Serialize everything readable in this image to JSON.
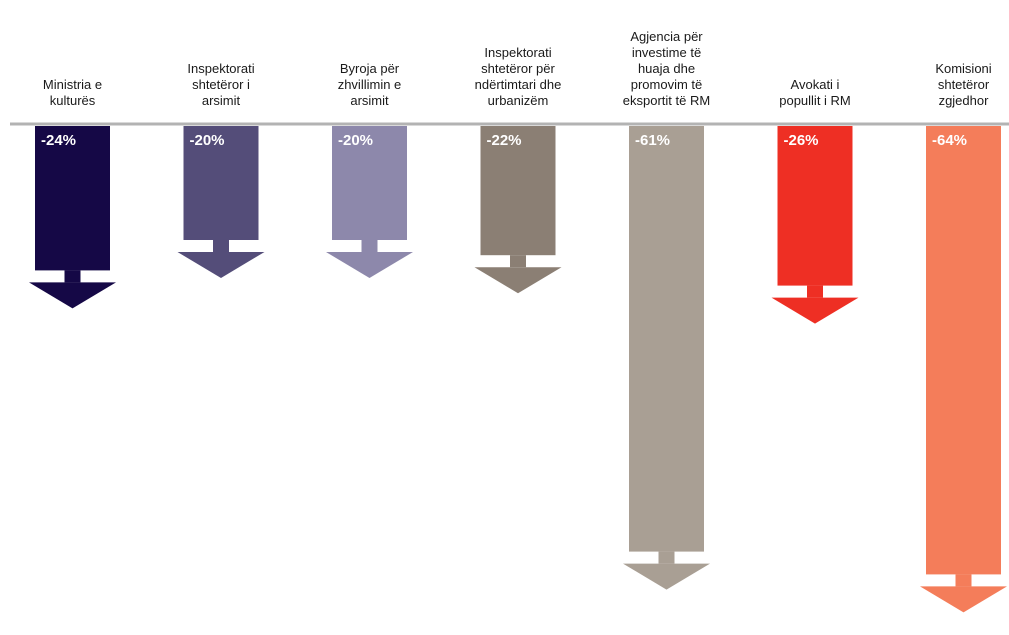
{
  "chart_data": {
    "type": "bar",
    "orientation": "downward-arrows",
    "categories": [
      "Ministria e kulturës",
      "Inspektorati shtetëror i arsimit",
      "Byroja për zhvillimin e arsimit",
      "Inspektorati shtetëror për ndërtimtari dhe urbanizëm",
      "Agjencia për investime të huaja dhe promovim të eksportit të RM",
      "Avokati i popullit i RM",
      "Komisioni shtetëror zgjedhor"
    ],
    "category_lines": [
      [
        "Ministria e",
        "kulturës"
      ],
      [
        "Inspektorati",
        "shtetëror i",
        "arsimit"
      ],
      [
        "Byroja për",
        "zhvillimin e",
        "arsimit"
      ],
      [
        "Inspektorati",
        "shtetëror për",
        "ndërtimtari dhe",
        "urbanizëm"
      ],
      [
        "Agjencia për",
        "investime të",
        "huaja dhe",
        "promovim të",
        "eksportit të RM"
      ],
      [
        "Avokati i",
        "popullit i RM"
      ],
      [
        "Komisioni",
        "shtetëror",
        "zgjedhor"
      ]
    ],
    "values": [
      -24,
      -20,
      -20,
      -22,
      -61,
      -26,
      -64
    ],
    "value_labels": [
      "-24%",
      "-20%",
      "-20%",
      "-22%",
      "-61%",
      "-26%",
      "-64%"
    ],
    "colors": [
      "#150846",
      "#544d79",
      "#8d88ab",
      "#8b7f74",
      "#a99f94",
      "#ee2f24",
      "#f47d5a"
    ],
    "axis_color": "#b3b3b3",
    "grid": false,
    "legend": "none"
  }
}
